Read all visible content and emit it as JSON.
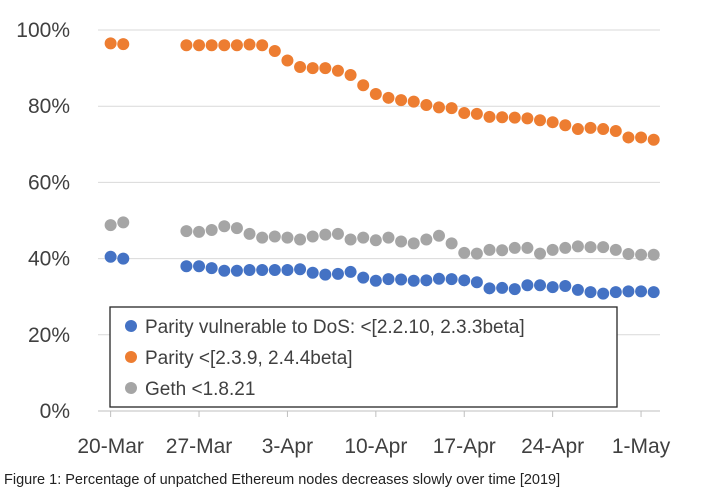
{
  "caption": "Figure 1: Percentage of unpatched Ethereum nodes decreases slowly over time [2019]",
  "colors": {
    "parity_dos": "#4472c4",
    "parity": "#ed7d31",
    "geth": "#a5a5a5",
    "grid": "#d9d9d9",
    "axis": "#bfbfbf",
    "text": "#404040"
  },
  "chart_data": {
    "type": "scatter",
    "title": "",
    "xlabel": "",
    "ylabel": "",
    "x_ticks": [
      "20-Mar",
      "27-Mar",
      "3-Apr",
      "10-Apr",
      "17-Apr",
      "24-Apr",
      "1-May"
    ],
    "x_tick_days": [
      0,
      7,
      14,
      21,
      28,
      35,
      42
    ],
    "xlim": [
      -1,
      43.5
    ],
    "y_ticks": [
      "0%",
      "20%",
      "40%",
      "60%",
      "80%",
      "100%"
    ],
    "ylim": [
      0,
      100
    ],
    "y_unit": "%",
    "grid": "horizontal",
    "legend_placement": "bottom-center",
    "series": [
      {
        "name": "Parity vulnerable to DoS: <[2.2.10, 2.3.3beta]",
        "color": "#4472c4",
        "points": [
          [
            "20-Mar",
            40.5
          ],
          [
            "21-Mar",
            40
          ],
          [
            "26-Mar",
            38
          ],
          [
            "27-Mar",
            38
          ],
          [
            "28-Mar",
            37.5
          ],
          [
            "29-Mar",
            36.8
          ],
          [
            "30-Mar",
            36.8
          ],
          [
            "31-Mar",
            37
          ],
          [
            "1-Apr",
            37
          ],
          [
            "2-Apr",
            37
          ],
          [
            "3-Apr",
            37
          ],
          [
            "4-Apr",
            37.2
          ],
          [
            "5-Apr",
            36.3
          ],
          [
            "6-Apr",
            35.8
          ],
          [
            "7-Apr",
            36
          ],
          [
            "8-Apr",
            36.5
          ],
          [
            "9-Apr",
            35
          ],
          [
            "10-Apr",
            34.2
          ],
          [
            "11-Apr",
            34.6
          ],
          [
            "12-Apr",
            34.5
          ],
          [
            "13-Apr",
            34.2
          ],
          [
            "14-Apr",
            34.3
          ],
          [
            "15-Apr",
            34.7
          ],
          [
            "16-Apr",
            34.6
          ],
          [
            "17-Apr",
            34.3
          ],
          [
            "18-Apr",
            33.8
          ],
          [
            "19-Apr",
            32.2
          ],
          [
            "20-Apr",
            32.3
          ],
          [
            "21-Apr",
            32
          ],
          [
            "22-Apr",
            33
          ],
          [
            "23-Apr",
            33
          ],
          [
            "24-Apr",
            32.5
          ],
          [
            "25-Apr",
            32.8
          ],
          [
            "26-Apr",
            31.8
          ],
          [
            "27-Apr",
            31.2
          ],
          [
            "28-Apr",
            30.8
          ],
          [
            "29-Apr",
            31.2
          ],
          [
            "30-Apr",
            31.4
          ],
          [
            "1-May",
            31.4
          ],
          [
            "2-May",
            31.2
          ]
        ]
      },
      {
        "name": "Parity <[2.3.9, 2.4.4beta]",
        "color": "#ed7d31",
        "points": [
          [
            "20-Mar",
            96.5
          ],
          [
            "21-Mar",
            96.3
          ],
          [
            "26-Mar",
            96
          ],
          [
            "27-Mar",
            96
          ],
          [
            "28-Mar",
            96
          ],
          [
            "29-Mar",
            96
          ],
          [
            "30-Mar",
            96
          ],
          [
            "31-Mar",
            96.2
          ],
          [
            "1-Apr",
            96
          ],
          [
            "2-Apr",
            94.5
          ],
          [
            "3-Apr",
            92
          ],
          [
            "4-Apr",
            90.3
          ],
          [
            "5-Apr",
            90
          ],
          [
            "6-Apr",
            90
          ],
          [
            "7-Apr",
            89.3
          ],
          [
            "8-Apr",
            88.2
          ],
          [
            "9-Apr",
            85.5
          ],
          [
            "10-Apr",
            83.2
          ],
          [
            "11-Apr",
            82.2
          ],
          [
            "12-Apr",
            81.6
          ],
          [
            "13-Apr",
            81.2
          ],
          [
            "14-Apr",
            80.3
          ],
          [
            "15-Apr",
            79.7
          ],
          [
            "16-Apr",
            79.5
          ],
          [
            "17-Apr",
            78.2
          ],
          [
            "18-Apr",
            78
          ],
          [
            "19-Apr",
            77.2
          ],
          [
            "20-Apr",
            77.1
          ],
          [
            "21-Apr",
            77
          ],
          [
            "22-Apr",
            76.8
          ],
          [
            "23-Apr",
            76.3
          ],
          [
            "24-Apr",
            75.8
          ],
          [
            "25-Apr",
            75
          ],
          [
            "26-Apr",
            74
          ],
          [
            "27-Apr",
            74.3
          ],
          [
            "28-Apr",
            74
          ],
          [
            "29-Apr",
            73.5
          ],
          [
            "30-Apr",
            71.8
          ],
          [
            "1-May",
            71.8
          ],
          [
            "2-May",
            71.2
          ]
        ]
      },
      {
        "name": "Geth <1.8.21",
        "color": "#a5a5a5",
        "points": [
          [
            "20-Mar",
            48.8
          ],
          [
            "21-Mar",
            49.5
          ],
          [
            "26-Mar",
            47.2
          ],
          [
            "27-Mar",
            47
          ],
          [
            "28-Mar",
            47.5
          ],
          [
            "29-Mar",
            48.5
          ],
          [
            "30-Mar",
            48
          ],
          [
            "31-Mar",
            46.5
          ],
          [
            "1-Apr",
            45.5
          ],
          [
            "2-Apr",
            45.8
          ],
          [
            "3-Apr",
            45.5
          ],
          [
            "4-Apr",
            45
          ],
          [
            "5-Apr",
            45.8
          ],
          [
            "6-Apr",
            46.3
          ],
          [
            "7-Apr",
            46.5
          ],
          [
            "8-Apr",
            45
          ],
          [
            "9-Apr",
            45.5
          ],
          [
            "10-Apr",
            44.8
          ],
          [
            "11-Apr",
            45.5
          ],
          [
            "12-Apr",
            44.5
          ],
          [
            "13-Apr",
            44
          ],
          [
            "14-Apr",
            45
          ],
          [
            "15-Apr",
            46
          ],
          [
            "16-Apr",
            44
          ],
          [
            "17-Apr",
            41.5
          ],
          [
            "18-Apr",
            41.3
          ],
          [
            "19-Apr",
            42.3
          ],
          [
            "20-Apr",
            42.2
          ],
          [
            "21-Apr",
            42.8
          ],
          [
            "22-Apr",
            42.8
          ],
          [
            "23-Apr",
            41.3
          ],
          [
            "24-Apr",
            42.3
          ],
          [
            "25-Apr",
            42.8
          ],
          [
            "26-Apr",
            43.2
          ],
          [
            "27-Apr",
            43
          ],
          [
            "28-Apr",
            43
          ],
          [
            "29-Apr",
            42.3
          ],
          [
            "30-Apr",
            41.2
          ],
          [
            "1-May",
            41
          ],
          [
            "2-May",
            41
          ]
        ]
      }
    ]
  }
}
